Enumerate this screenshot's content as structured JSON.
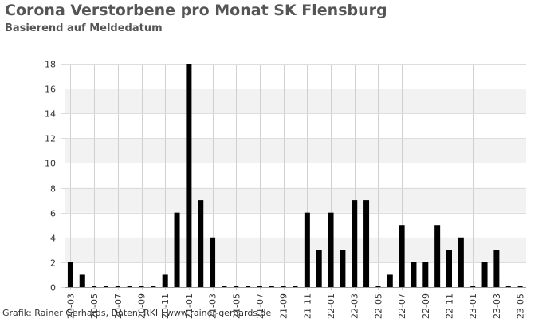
{
  "title": "Corona Verstorbene pro Monat SK Flensburg",
  "subtitle": "Basierend auf Meldedatum",
  "credit": "Grafik: Rainer Gerhards, Daten: RKI | www.rainer-gerhards.de",
  "chart_data": {
    "type": "bar",
    "title": "Corona Verstorbene pro Monat SK Flensburg",
    "subtitle": "Basierend auf Meldedatum",
    "xlabel": "",
    "ylabel": "",
    "ylim": [
      0,
      18
    ],
    "yticks": [
      0,
      2,
      4,
      6,
      8,
      10,
      12,
      14,
      16,
      18
    ],
    "grid": true,
    "legend": "none",
    "bar_color": "#000000",
    "band_color": "#f2f2f2",
    "categories": [
      "2020-03",
      "2020-04",
      "2020-05",
      "2020-06",
      "2020-07",
      "2020-08",
      "2020-09",
      "2020-10",
      "2020-11",
      "2020-12",
      "2021-01",
      "2021-02",
      "2021-03",
      "2021-04",
      "2021-05",
      "2021-06",
      "2021-07",
      "2021-08",
      "2021-09",
      "2021-10",
      "2021-11",
      "2021-12",
      "2022-01",
      "2022-02",
      "2022-03",
      "2022-04",
      "2022-05",
      "2022-06",
      "2022-07",
      "2022-08",
      "2022-09",
      "2022-10",
      "2022-11",
      "2022-12",
      "2023-01",
      "2023-02",
      "2023-03",
      "2023-04",
      "2023-05"
    ],
    "values": [
      2,
      1,
      0,
      0,
      0,
      0,
      0,
      0,
      1,
      6,
      18,
      7,
      4,
      0,
      0,
      0,
      0,
      0,
      0,
      0,
      6,
      3,
      6,
      3,
      7,
      7,
      0,
      1,
      5,
      2,
      2,
      5,
      3,
      4,
      0,
      2,
      3,
      0,
      0
    ],
    "tick_labels": [
      "2020-03",
      "2020-05",
      "2020-07",
      "2020-09",
      "2020-11",
      "2021-01",
      "2021-03",
      "2021-05",
      "2021-07",
      "2021-09",
      "2021-11",
      "2022-01",
      "2022-03",
      "2022-05",
      "2022-07",
      "2022-09",
      "2022-11",
      "2023-01",
      "2023-03",
      "2023-05"
    ]
  }
}
